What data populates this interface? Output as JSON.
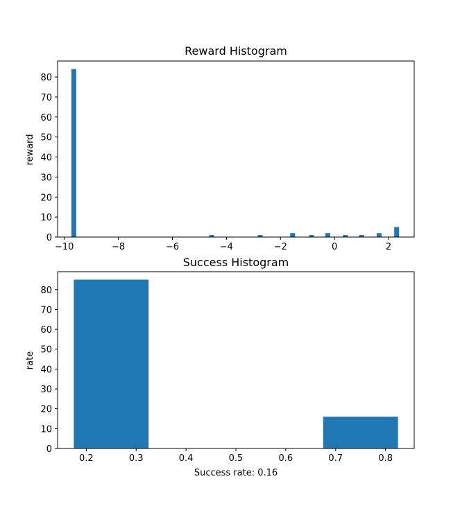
{
  "chart_data": [
    {
      "type": "bar",
      "title": "Reward Histogram",
      "xlabel": "",
      "ylabel": "reward",
      "xlim": [
        -10.25,
        2.95
      ],
      "ylim": [
        0,
        88
      ],
      "xticks": [
        -10,
        -8,
        -6,
        -4,
        -2,
        0,
        2
      ],
      "yticks": [
        0,
        10,
        20,
        30,
        40,
        50,
        60,
        70,
        80
      ],
      "bar_width": 0.18,
      "bars": [
        {
          "x": -9.65,
          "value": 84
        },
        {
          "x": -4.55,
          "value": 1
        },
        {
          "x": -2.75,
          "value": 1
        },
        {
          "x": -1.55,
          "value": 2
        },
        {
          "x": -0.85,
          "value": 1
        },
        {
          "x": -0.25,
          "value": 2
        },
        {
          "x": 0.4,
          "value": 1
        },
        {
          "x": 1.0,
          "value": 1
        },
        {
          "x": 1.65,
          "value": 2
        },
        {
          "x": 2.3,
          "value": 5
        }
      ],
      "color": "#1f77b4"
    },
    {
      "type": "bar",
      "title": "Success Histogram",
      "xlabel": "Success rate: 0.16",
      "ylabel": "rate",
      "xlim": [
        0.1425,
        0.8575
      ],
      "ylim": [
        0,
        89
      ],
      "xticks": [
        0.2,
        0.3,
        0.4,
        0.5,
        0.6,
        0.7,
        0.8
      ],
      "yticks": [
        0,
        10,
        20,
        30,
        40,
        50,
        60,
        70,
        80
      ],
      "bar_width": 0.15,
      "bars": [
        {
          "x": 0.25,
          "value": 85
        },
        {
          "x": 0.75,
          "value": 16
        }
      ],
      "color": "#1f77b4"
    }
  ]
}
